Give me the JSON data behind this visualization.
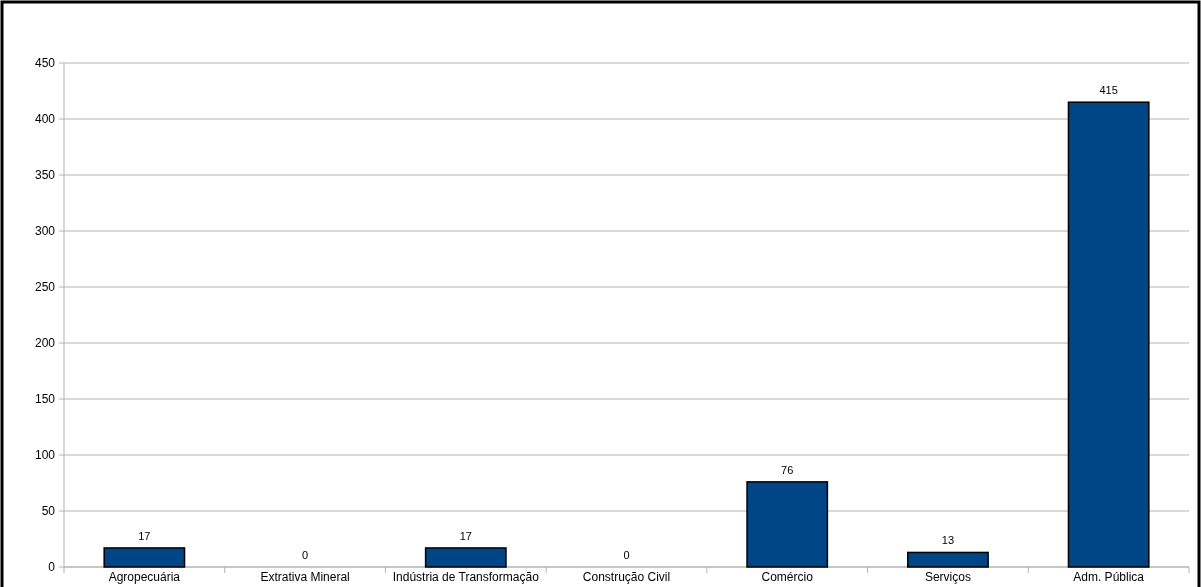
{
  "chart_data": {
    "type": "bar",
    "categories": [
      "Agropecuária",
      "Extrativa Mineral",
      "Indústria de Transformação",
      "Construção Civil",
      "Comércio",
      "Serviços",
      "Adm. Pública"
    ],
    "values": [
      17,
      0,
      17,
      0,
      76,
      13,
      415
    ],
    "color": "#004586",
    "ylim": [
      0,
      450
    ],
    "yticks": [
      0,
      50,
      100,
      150,
      200,
      250,
      300,
      350,
      400,
      450
    ],
    "grid": "y",
    "data_labels": true
  }
}
